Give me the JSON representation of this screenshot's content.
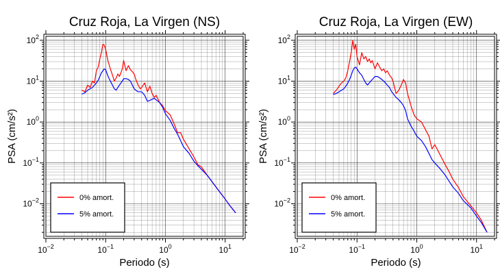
{
  "chart_data": [
    {
      "type": "line",
      "title": "Cruz Roja, La Virgen (NS)",
      "xlabel": "Periodo (s)",
      "ylabel": "PSA (cm/s²)",
      "xscale": "log",
      "yscale": "log",
      "xlim": [
        0.01,
        20
      ],
      "ylim": [
        0.0016,
        125
      ],
      "grid": true,
      "legend_position": "bottom-left",
      "xticks": [
        {
          "base": "10",
          "exp": "−2",
          "value": 0.01
        },
        {
          "base": "10",
          "exp": "−1",
          "value": 0.1
        },
        {
          "base": "10",
          "exp": "0",
          "value": 1
        },
        {
          "base": "10",
          "exp": "1",
          "value": 10
        }
      ],
      "yticks": [
        {
          "base": "10",
          "exp": "2",
          "value": 100
        },
        {
          "base": "10",
          "exp": "1",
          "value": 10
        },
        {
          "base": "10",
          "exp": "0",
          "value": 1
        },
        {
          "base": "10",
          "exp": "−1",
          "value": 0.1
        },
        {
          "base": "10",
          "exp": "−2",
          "value": 0.01
        }
      ],
      "series": [
        {
          "name": "0% amort.",
          "color": "#ff0000",
          "x": [
            0.04,
            0.045,
            0.05,
            0.055,
            0.06,
            0.065,
            0.07,
            0.075,
            0.08,
            0.085,
            0.09,
            0.095,
            0.1,
            0.11,
            0.12,
            0.13,
            0.14,
            0.15,
            0.16,
            0.17,
            0.18,
            0.19,
            0.2,
            0.22,
            0.24,
            0.26,
            0.28,
            0.3,
            0.32,
            0.35,
            0.38,
            0.4,
            0.45,
            0.5,
            0.55,
            0.6,
            0.65,
            0.7,
            0.8,
            0.9,
            1.0,
            1.2,
            1.4,
            1.6,
            1.8,
            2.0,
            2.5,
            3.0,
            3.5,
            4.0,
            5.0,
            6.0,
            8.0,
            10.0,
            12.0,
            15.0
          ],
          "y": [
            6.0,
            5.5,
            8.0,
            7.0,
            10.0,
            9.0,
            18.0,
            22.0,
            35.0,
            50.0,
            80.0,
            75.0,
            60.0,
            30.0,
            20.0,
            14.0,
            10.0,
            12.0,
            15.0,
            13.0,
            16.0,
            20.0,
            32.0,
            18.0,
            24.0,
            19.0,
            17.0,
            15.0,
            11.0,
            8.0,
            6.5,
            7.0,
            9.0,
            5.5,
            7.5,
            5.0,
            4.0,
            4.5,
            3.0,
            2.5,
            1.9,
            1.5,
            0.9,
            0.55,
            0.55,
            0.38,
            0.22,
            0.14,
            0.09,
            0.08,
            0.05,
            0.035,
            0.02,
            0.013,
            0.009,
            0.006
          ]
        },
        {
          "name": "5% amort.",
          "color": "#0000ff",
          "x": [
            0.04,
            0.045,
            0.05,
            0.055,
            0.06,
            0.065,
            0.07,
            0.075,
            0.08,
            0.085,
            0.09,
            0.095,
            0.1,
            0.11,
            0.12,
            0.13,
            0.14,
            0.15,
            0.16,
            0.17,
            0.18,
            0.19,
            0.2,
            0.22,
            0.24,
            0.26,
            0.28,
            0.3,
            0.32,
            0.35,
            0.38,
            0.4,
            0.45,
            0.5,
            0.55,
            0.6,
            0.65,
            0.7,
            0.8,
            0.9,
            1.0,
            1.2,
            1.4,
            1.6,
            1.8,
            2.0,
            2.5,
            3.0,
            3.5,
            4.0,
            5.0,
            6.0,
            8.0,
            10.0,
            12.0,
            15.0
          ],
          "y": [
            4.8,
            5.2,
            6.0,
            6.5,
            7.0,
            8.0,
            9.0,
            10.5,
            13.0,
            16.0,
            18.0,
            20.0,
            19.0,
            13.0,
            10.0,
            8.0,
            6.5,
            6.0,
            7.0,
            8.0,
            9.0,
            10.0,
            11.5,
            11.5,
            11.0,
            10.0,
            8.0,
            6.5,
            6.0,
            5.5,
            5.5,
            5.5,
            4.5,
            3.2,
            3.4,
            3.6,
            3.8,
            3.5,
            3.0,
            2.3,
            1.6,
            1.1,
            0.7,
            0.5,
            0.35,
            0.25,
            0.17,
            0.11,
            0.085,
            0.07,
            0.05,
            0.035,
            0.02,
            0.013,
            0.009,
            0.006
          ]
        }
      ]
    },
    {
      "type": "line",
      "title": "Cruz Roja, La Virgen (EW)",
      "xlabel": "Periodo (s)",
      "ylabel": "PSA (cm/s²)",
      "xscale": "log",
      "yscale": "log",
      "xlim": [
        0.01,
        20
      ],
      "ylim": [
        0.0016,
        125
      ],
      "grid": true,
      "legend_position": "bottom-left",
      "xticks": [
        {
          "base": "10",
          "exp": "−2",
          "value": 0.01
        },
        {
          "base": "10",
          "exp": "−1",
          "value": 0.1
        },
        {
          "base": "10",
          "exp": "0",
          "value": 1
        },
        {
          "base": "10",
          "exp": "1",
          "value": 10
        }
      ],
      "yticks": [
        {
          "base": "10",
          "exp": "2",
          "value": 100
        },
        {
          "base": "10",
          "exp": "1",
          "value": 10
        },
        {
          "base": "10",
          "exp": "0",
          "value": 1
        },
        {
          "base": "10",
          "exp": "−1",
          "value": 0.1
        },
        {
          "base": "10",
          "exp": "−2",
          "value": 0.01
        }
      ],
      "series": [
        {
          "name": "0% amort.",
          "color": "#ff0000",
          "x": [
            0.04,
            0.045,
            0.05,
            0.055,
            0.06,
            0.065,
            0.07,
            0.075,
            0.08,
            0.085,
            0.09,
            0.095,
            0.1,
            0.11,
            0.12,
            0.13,
            0.14,
            0.15,
            0.16,
            0.17,
            0.18,
            0.19,
            0.2,
            0.22,
            0.24,
            0.26,
            0.28,
            0.3,
            0.32,
            0.35,
            0.38,
            0.4,
            0.45,
            0.5,
            0.55,
            0.6,
            0.65,
            0.7,
            0.8,
            0.9,
            1.0,
            1.2,
            1.4,
            1.6,
            1.8,
            2.0,
            2.5,
            3.0,
            3.5,
            4.0,
            5.0,
            6.0,
            8.0,
            10.0,
            12.0,
            15.0
          ],
          "y": [
            5.0,
            6.0,
            7.5,
            9.0,
            10.0,
            12.0,
            18.0,
            30.0,
            50.0,
            100.0,
            60.0,
            80.0,
            40.0,
            25.0,
            50.0,
            35.0,
            40.0,
            30.0,
            35.0,
            28.0,
            32.0,
            25.0,
            20.0,
            28.0,
            22.0,
            18.0,
            20.0,
            16.0,
            18.0,
            14.0,
            12.0,
            10.0,
            5.0,
            6.0,
            8.0,
            11.0,
            9.0,
            5.0,
            2.5,
            1.5,
            1.2,
            1.0,
            0.65,
            0.45,
            0.22,
            0.28,
            0.15,
            0.09,
            0.06,
            0.04,
            0.025,
            0.015,
            0.009,
            0.006,
            0.004,
            0.002
          ]
        },
        {
          "name": "5% amort.",
          "color": "#0000ff",
          "x": [
            0.04,
            0.045,
            0.05,
            0.055,
            0.06,
            0.065,
            0.07,
            0.075,
            0.08,
            0.085,
            0.09,
            0.095,
            0.1,
            0.11,
            0.12,
            0.13,
            0.14,
            0.15,
            0.16,
            0.17,
            0.18,
            0.19,
            0.2,
            0.22,
            0.24,
            0.26,
            0.28,
            0.3,
            0.32,
            0.35,
            0.38,
            0.4,
            0.45,
            0.5,
            0.55,
            0.6,
            0.65,
            0.7,
            0.8,
            0.9,
            1.0,
            1.2,
            1.4,
            1.6,
            1.8,
            2.0,
            2.5,
            3.0,
            3.5,
            4.0,
            5.0,
            6.0,
            8.0,
            10.0,
            12.0,
            15.0
          ],
          "y": [
            4.7,
            5.0,
            5.5,
            6.0,
            6.5,
            7.5,
            9.0,
            11.0,
            14.0,
            18.0,
            21.0,
            22.0,
            20.0,
            16.0,
            14.0,
            11.0,
            9.0,
            8.0,
            9.0,
            10.0,
            11.0,
            12.0,
            13.0,
            13.0,
            12.0,
            11.0,
            10.0,
            9.0,
            8.0,
            7.0,
            5.5,
            5.0,
            4.0,
            3.5,
            3.0,
            2.5,
            1.9,
            1.2,
            0.8,
            0.6,
            0.45,
            0.35,
            0.25,
            0.17,
            0.12,
            0.1,
            0.07,
            0.05,
            0.035,
            0.026,
            0.018,
            0.012,
            0.008,
            0.005,
            0.0035,
            0.002
          ]
        }
      ]
    }
  ]
}
